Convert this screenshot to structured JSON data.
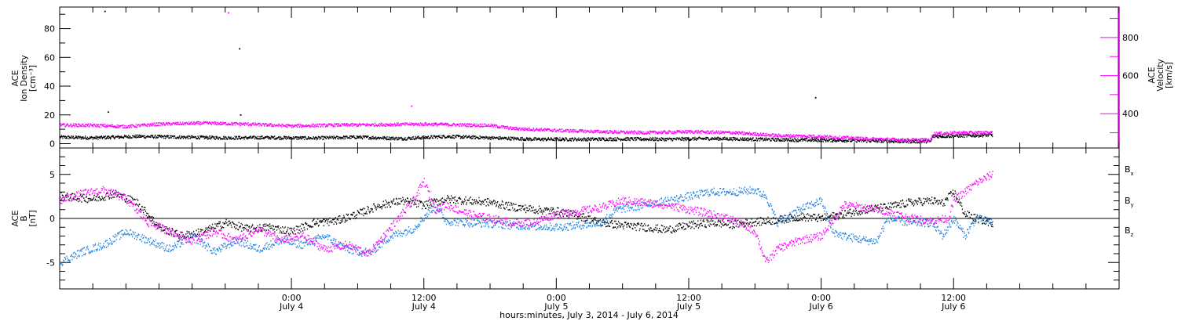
{
  "chart_data": [
    {
      "type": "line",
      "xlabel": "hours:minutes, July  3, 2014 - July  6, 2014",
      "x_range_hours": [
        -21,
        75
      ],
      "x_ticks": [
        {
          "t": 0,
          "time": "0:00",
          "date": "July 4"
        },
        {
          "t": 12,
          "time": "12:00",
          "date": "July 4"
        },
        {
          "t": 24,
          "time": "0:00",
          "date": "July 5"
        },
        {
          "t": 36,
          "time": "12:00",
          "date": "July 5"
        },
        {
          "t": 48,
          "time": "0:00",
          "date": "July 6"
        },
        {
          "t": 60,
          "time": "12:00",
          "date": "July 6"
        }
      ],
      "y_left": {
        "label_lines": [
          "ACE",
          "Ion Density",
          "[cm⁻³]"
        ],
        "range": [
          -3,
          95
        ],
        "ticks": [
          "0",
          "20",
          "40",
          "60",
          "80"
        ]
      },
      "y_right": {
        "label_lines": [
          "ACE",
          "Velocity",
          "[km/s]"
        ],
        "range": [
          220,
          960
        ],
        "ticks": [
          "400",
          "600",
          "800"
        ],
        "color": "#ff00ff"
      },
      "series": [
        {
          "name": "",
          "axis": "left",
          "color": "#000000",
          "points": [
            [
              -21,
              4.5
            ],
            [
              -18,
              4
            ],
            [
              -14,
              5
            ],
            [
              -10,
              4.5
            ],
            [
              -6,
              4
            ],
            [
              -2,
              4.2
            ],
            [
              2,
              3.8
            ],
            [
              6,
              4.5
            ],
            [
              10,
              3.5
            ],
            [
              14,
              5
            ],
            [
              18,
              4
            ],
            [
              22,
              3
            ],
            [
              26,
              3
            ],
            [
              30,
              3.2
            ],
            [
              34,
              3
            ],
            [
              38,
              3.5
            ],
            [
              42,
              3
            ],
            [
              46,
              2.5
            ],
            [
              50,
              2.3
            ],
            [
              53,
              1.8
            ],
            [
              56,
              1.5
            ],
            [
              57.9,
              1.6
            ],
            [
              58.1,
              5
            ],
            [
              61,
              5.5
            ],
            [
              63.5,
              6
            ]
          ],
          "outliers": [
            [
              -16.9,
              92
            ],
            [
              -16.6,
              22
            ],
            [
              -4.6,
              20
            ],
            [
              -4.7,
              66
            ],
            [
              47.5,
              32
            ]
          ]
        },
        {
          "name": "",
          "axis": "right",
          "color": "#ff00ff",
          "points": [
            [
              -21,
              340
            ],
            [
              -18,
              338
            ],
            [
              -15,
              332
            ],
            [
              -12,
              345
            ],
            [
              -8,
              350
            ],
            [
              -4,
              345
            ],
            [
              0,
              335
            ],
            [
              4,
              340
            ],
            [
              8,
              342
            ],
            [
              12,
              345
            ],
            [
              16,
              340
            ],
            [
              18,
              338
            ],
            [
              20,
              322
            ],
            [
              24,
              312
            ],
            [
              28,
              305
            ],
            [
              32,
              300
            ],
            [
              36,
              305
            ],
            [
              40,
              300
            ],
            [
              44,
              285
            ],
            [
              48,
              280
            ],
            [
              52,
              268
            ],
            [
              56,
              262
            ],
            [
              57.9,
              262
            ],
            [
              58.1,
              295
            ],
            [
              61,
              300
            ],
            [
              63.5,
              300
            ]
          ],
          "outliers": [
            [
              -5.7,
              930
            ],
            [
              10.9,
              440
            ]
          ]
        }
      ]
    },
    {
      "type": "line",
      "x_range_hours": [
        -21,
        75
      ],
      "y_left": {
        "label_lines": [
          "ACE",
          "B",
          "[nT]"
        ],
        "range": [
          -8,
          8
        ],
        "ticks": [
          "-5",
          "0",
          "5"
        ],
        "zero_line": true
      },
      "series": [
        {
          "name": "B",
          "subscript": "x",
          "color": "#000000",
          "points": [
            [
              -21,
              2.5
            ],
            [
              -18,
              2.2
            ],
            [
              -16,
              2.8
            ],
            [
              -14,
              1.8
            ],
            [
              -12,
              -1
            ],
            [
              -10,
              -2
            ],
            [
              -8,
              -1.5
            ],
            [
              -6,
              -0.5
            ],
            [
              -4,
              -1.2
            ],
            [
              -2,
              -1
            ],
            [
              0,
              -1.5
            ],
            [
              2,
              -0.5
            ],
            [
              4,
              -0.3
            ],
            [
              6,
              0.5
            ],
            [
              8,
              1.5
            ],
            [
              10,
              2
            ],
            [
              12,
              1.5
            ],
            [
              14,
              2.2
            ],
            [
              16,
              2
            ],
            [
              18,
              1.8
            ],
            [
              20,
              1.3
            ],
            [
              22,
              1
            ],
            [
              24,
              0.8
            ],
            [
              26,
              0.3
            ],
            [
              28,
              -0.5
            ],
            [
              30,
              -0.8
            ],
            [
              32,
              -1
            ],
            [
              34,
              -1.3
            ],
            [
              36,
              -0.8
            ],
            [
              38,
              -0.5
            ],
            [
              40,
              -0.7
            ],
            [
              42,
              -0.4
            ],
            [
              44,
              -0.2
            ],
            [
              46,
              0.2
            ],
            [
              48,
              0
            ],
            [
              50,
              0.5
            ],
            [
              52,
              1
            ],
            [
              54,
              1.3
            ],
            [
              56,
              1.8
            ],
            [
              58,
              2
            ],
            [
              59,
              1.7
            ],
            [
              60,
              3
            ],
            [
              61,
              0.5
            ],
            [
              62,
              0
            ],
            [
              63.5,
              -0.5
            ]
          ]
        },
        {
          "name": "B",
          "subscript": "y",
          "color": "#1a7fe0",
          "points": [
            [
              -21,
              -5
            ],
            [
              -19,
              -3.8
            ],
            [
              -17,
              -3
            ],
            [
              -15,
              -1.5
            ],
            [
              -13,
              -2.5
            ],
            [
              -11,
              -3.5
            ],
            [
              -9,
              -2
            ],
            [
              -7,
              -3.8
            ],
            [
              -5,
              -2.5
            ],
            [
              -3,
              -3.5
            ],
            [
              -1,
              -2.5
            ],
            [
              1,
              -3
            ],
            [
              3,
              -2
            ],
            [
              5,
              -3.5
            ],
            [
              7,
              -4
            ],
            [
              9,
              -2
            ],
            [
              11,
              -1.2
            ],
            [
              13,
              1.5
            ],
            [
              14,
              -0.3
            ],
            [
              16,
              -0.5
            ],
            [
              18,
              -0.6
            ],
            [
              20,
              -0.8
            ],
            [
              22,
              -0.9
            ],
            [
              24,
              -1
            ],
            [
              26,
              -0.8
            ],
            [
              28,
              -0.5
            ],
            [
              29.5,
              1
            ],
            [
              32,
              1.5
            ],
            [
              34,
              2
            ],
            [
              36,
              2.5
            ],
            [
              38,
              3
            ],
            [
              40,
              3
            ],
            [
              42,
              3.2
            ],
            [
              43,
              2.5
            ],
            [
              44,
              -0.5
            ],
            [
              46,
              1
            ],
            [
              48,
              2
            ],
            [
              49,
              -1.5
            ],
            [
              50,
              -2
            ],
            [
              52,
              -2.5
            ],
            [
              53,
              -2.6
            ],
            [
              54,
              0
            ],
            [
              56,
              -0.5
            ],
            [
              58,
              -0.5
            ],
            [
              59,
              -2
            ],
            [
              60,
              0
            ],
            [
              61,
              -2
            ],
            [
              62,
              0
            ],
            [
              63.5,
              -0.5
            ]
          ]
        },
        {
          "name": "B",
          "subscript": "z",
          "color": "#ff00ff",
          "points": [
            [
              -21,
              2
            ],
            [
              -19,
              2.8
            ],
            [
              -17,
              3.2
            ],
            [
              -15,
              2.2
            ],
            [
              -13,
              -0.5
            ],
            [
              -11,
              -1.5
            ],
            [
              -9,
              -2.5
            ],
            [
              -7,
              -1.5
            ],
            [
              -5,
              -2.5
            ],
            [
              -3,
              -1.2
            ],
            [
              -1,
              -2.5
            ],
            [
              1,
              -2
            ],
            [
              3,
              -3.5
            ],
            [
              5,
              -3
            ],
            [
              7,
              -4
            ],
            [
              9,
              -1
            ],
            [
              11,
              2
            ],
            [
              12,
              4.2
            ],
            [
              13,
              1
            ],
            [
              14,
              1.5
            ],
            [
              16,
              0.5
            ],
            [
              18,
              0
            ],
            [
              20,
              -0.5
            ],
            [
              22,
              -0.4
            ],
            [
              24,
              0.5
            ],
            [
              26,
              0.8
            ],
            [
              28,
              1.2
            ],
            [
              30,
              2
            ],
            [
              32,
              1.8
            ],
            [
              34,
              1.5
            ],
            [
              36,
              1
            ],
            [
              38,
              0.5
            ],
            [
              40,
              -0.2
            ],
            [
              42,
              -1.5
            ],
            [
              43,
              -5
            ],
            [
              44,
              -3.5
            ],
            [
              46,
              -2.5
            ],
            [
              48,
              -2
            ],
            [
              50,
              1.5
            ],
            [
              52,
              1.2
            ],
            [
              54,
              0.8
            ],
            [
              56,
              0
            ],
            [
              58,
              -0.3
            ],
            [
              59.5,
              0
            ],
            [
              60,
              2
            ],
            [
              61,
              3
            ],
            [
              62,
              4
            ],
            [
              63.5,
              5
            ]
          ]
        }
      ]
    }
  ]
}
